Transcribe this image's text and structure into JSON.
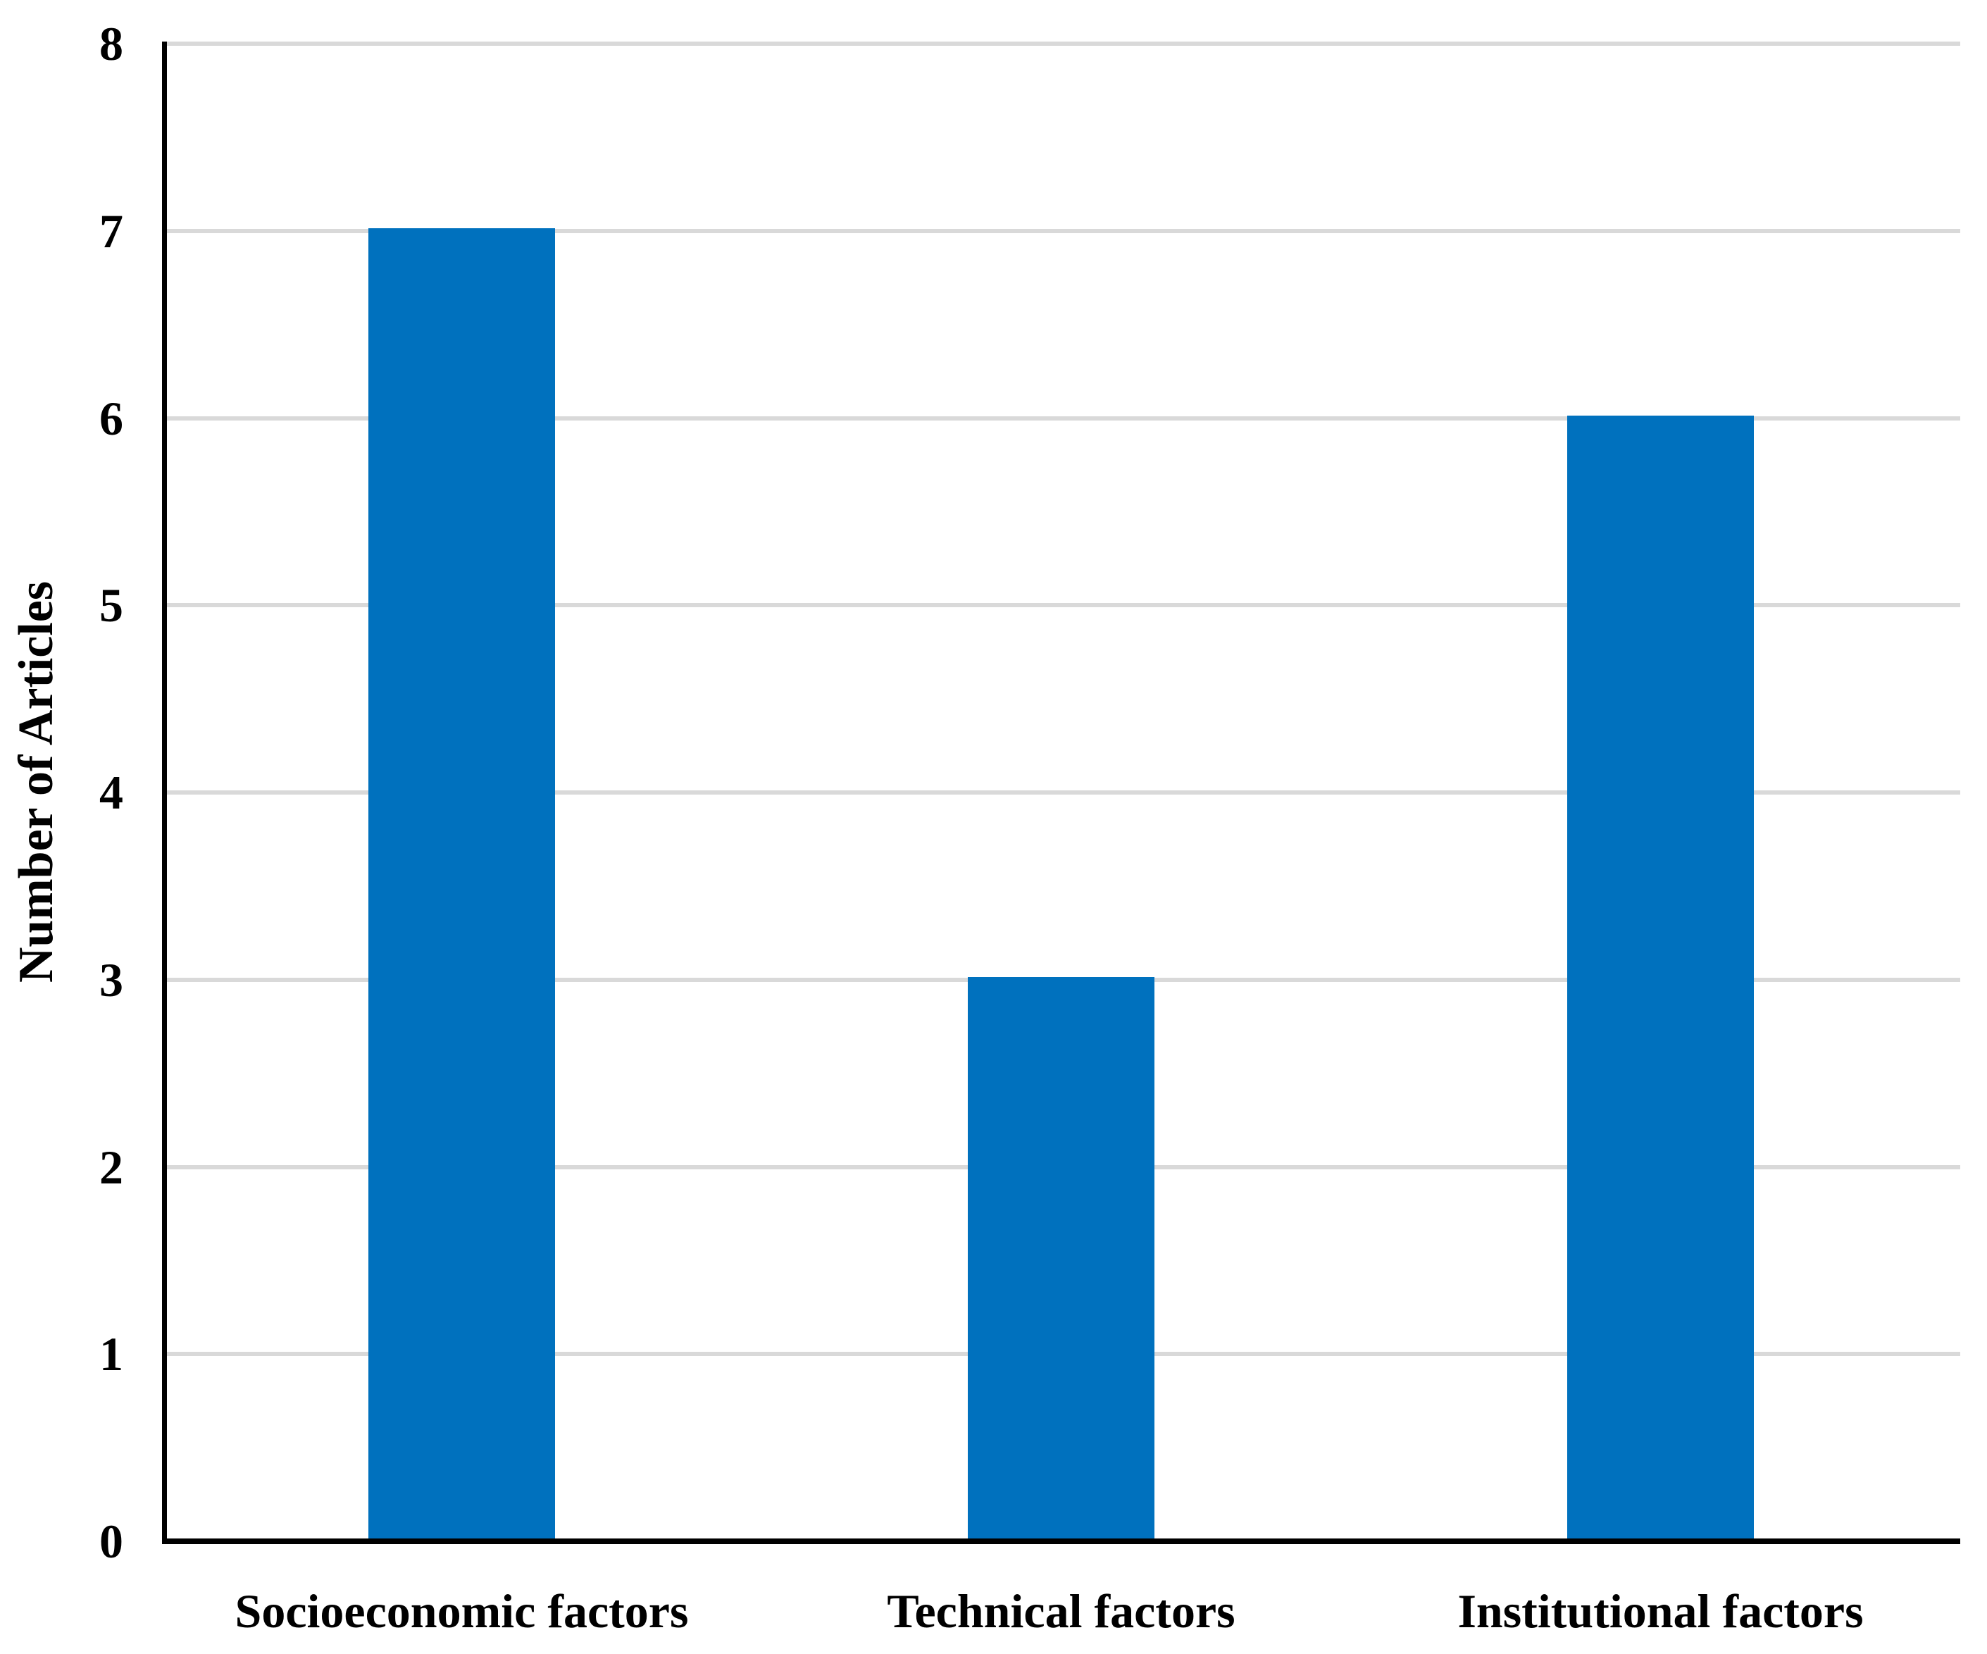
{
  "chart_data": {
    "type": "bar",
    "categories": [
      "Socioeconomic factors",
      "Technical factors",
      "Institutional factors"
    ],
    "values": [
      7,
      3,
      6
    ],
    "title": "",
    "xlabel": "",
    "ylabel": "Number of Articles",
    "ylim": [
      0,
      8
    ],
    "yticks": [
      "0",
      "1",
      "2",
      "3",
      "4",
      "5",
      "6",
      "7",
      "8"
    ],
    "grid": "horizontal",
    "legend": "none",
    "colors": {
      "bar": "#0071BE",
      "gridline": "#D9D9D9",
      "axis": "#000000",
      "background": "#FFFFFF",
      "text": "#000000"
    }
  }
}
